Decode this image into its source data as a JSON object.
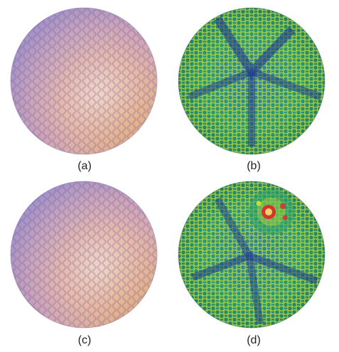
{
  "panels": [
    {
      "label": "(a)",
      "kind": "shaded-dimpled-sphere"
    },
    {
      "label": "(b)",
      "kind": "colormap-dimpled-sphere"
    },
    {
      "label": "(c)",
      "kind": "shaded-dimpled-sphere"
    },
    {
      "label": "(d)",
      "kind": "colormap-dimpled-sphere-with-hotspot"
    }
  ],
  "colors": {
    "shade_cool": "#9a8fd6",
    "shade_warm": "#e3a55a",
    "shade_highlight": "#f5ddd2",
    "map_low": "#1f3a8f",
    "map_mid": "#2ea36b",
    "map_high": "#d8e12b",
    "map_hot": "#e0262a"
  }
}
